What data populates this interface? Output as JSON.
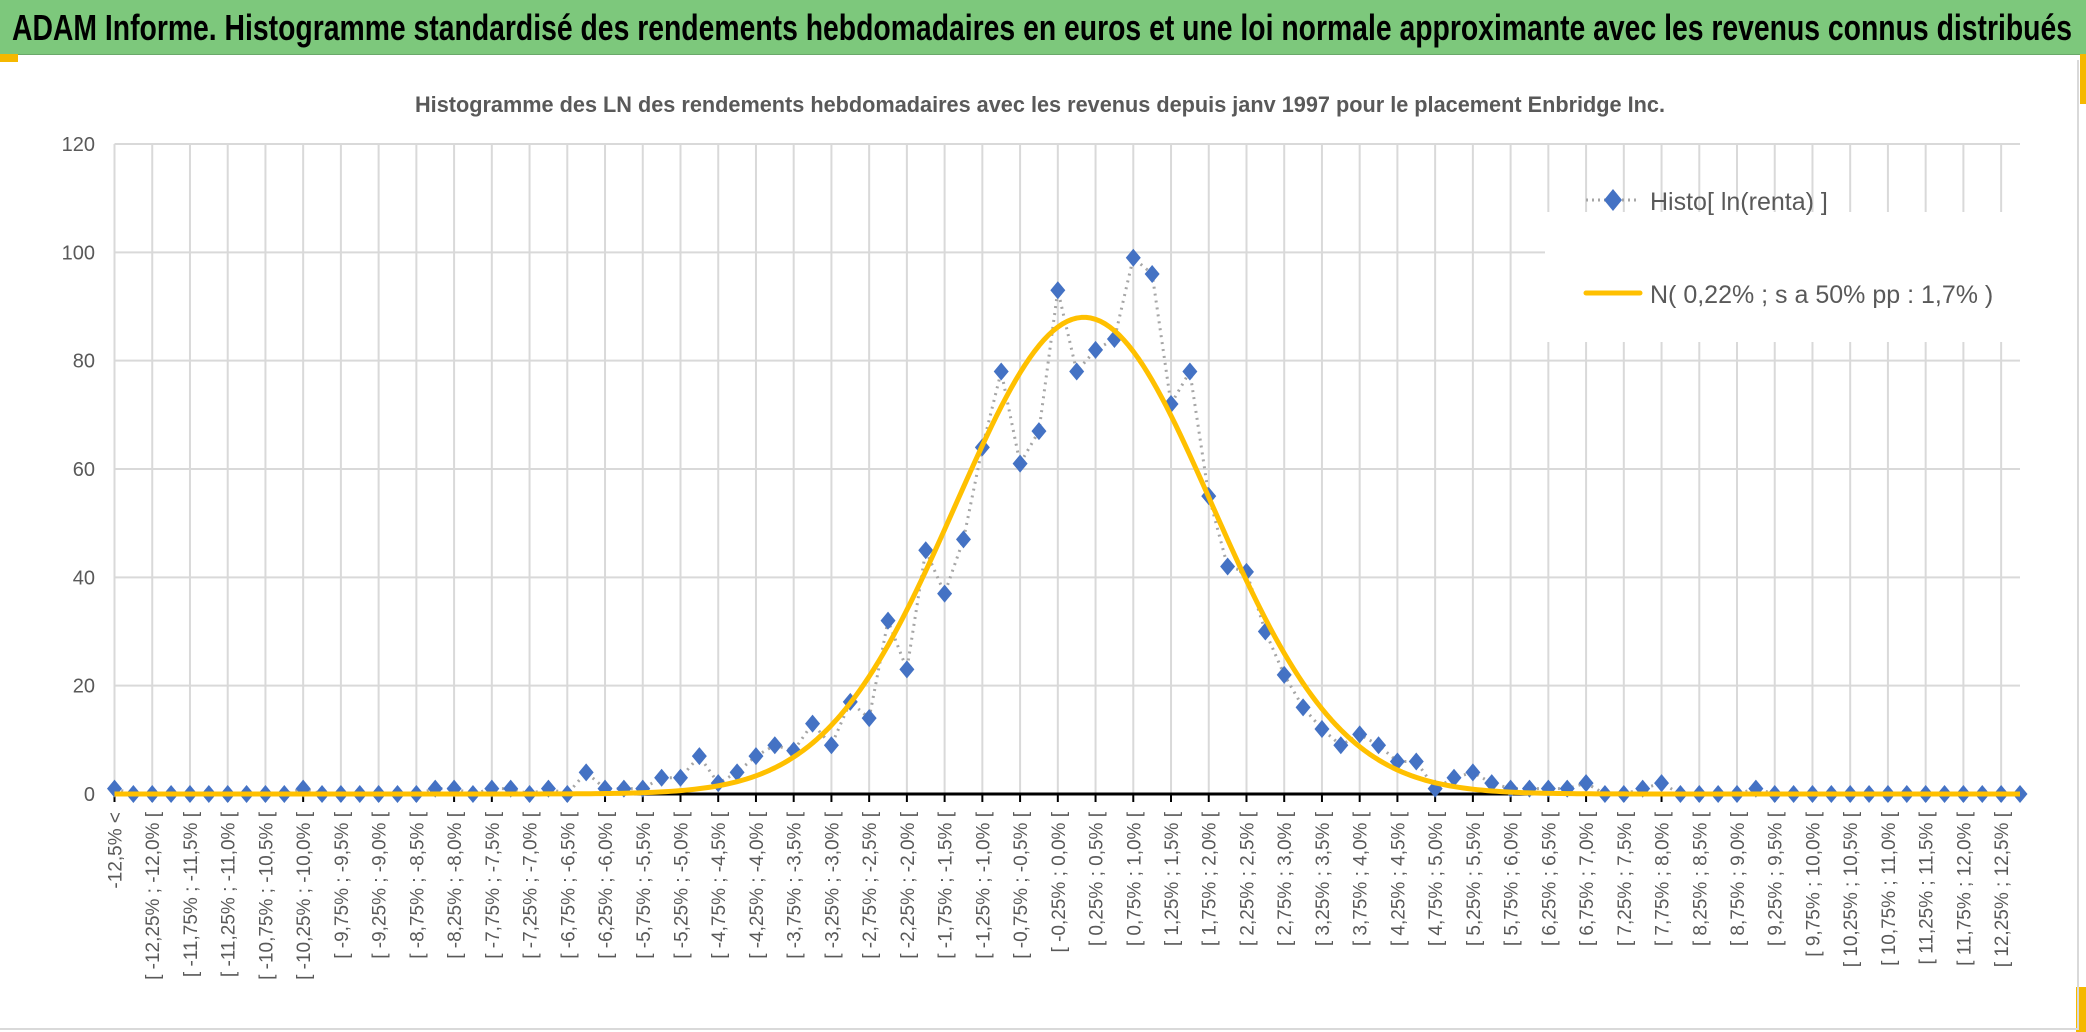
{
  "header": {
    "title": "ADAM Informe. Histogramme standardisé des rendements hebdomadaires en euros et une loi normale approximante avec les revenus connus distribués"
  },
  "colors": {
    "header_bg": "#7dc87c",
    "accent": "#f5b800",
    "histo": "#4472c4",
    "histo_line": "#a6a6a6",
    "normal": "#ffc000",
    "grid": "#d9d9d9",
    "text": "#595959"
  },
  "chart_data": {
    "type": "line",
    "title": "Histogramme des LN des rendements hebdomadaires avec les revenus depuis janv 1997 pour le placement Enbridge Inc.",
    "xlabel": "",
    "ylabel": "",
    "ylim": [
      0,
      120
    ],
    "yticks": [
      0,
      20,
      40,
      60,
      80,
      100,
      120
    ],
    "grid": true,
    "legend_position": "top-right",
    "tick_labels": [
      "-12,5% <",
      "[ -12,25% ; -12,0% [",
      "[ -11,75% ; -11,5% [",
      "[ -11,25% ; -11,0% [",
      "[ -10,75% ; -10,5% [",
      "[ -10,25% ; -10,0% [",
      "[ -9,75% ; -9,5% [",
      "[ -9,25% ; -9,0% [",
      "[ -8,75% ; -8,5% [",
      "[ -8,25% ; -8,0% [",
      "[ -7,75% ; -7,5% [",
      "[ -7,25% ; -7,0% [",
      "[ -6,75% ; -6,5% [",
      "[ -6,25% ; -6,0% [",
      "[ -5,75% ; -5,5% [",
      "[ -5,25% ; -5,0% [",
      "[ -4,75% ; -4,5% [",
      "[ -4,25% ; -4,0% [",
      "[ -3,75% ; -3,5% [",
      "[ -3,25% ; -3,0% [",
      "[ -2,75% ; -2,5% [",
      "[ -2,25% ; -2,0% [",
      "[ -1,75% ; -1,5% [",
      "[ -1,25% ; -1,0% [",
      "[ -0,75% ; -0,5% [",
      "[ -0,25% ; 0,0% [",
      "[ 0,25% ; 0,5% [",
      "[ 0,75% ; 1,0% [",
      "[ 1,25% ; 1,5% [",
      "[ 1,75% ; 2,0% [",
      "[ 2,25% ; 2,5% [",
      "[ 2,75% ; 3,0% [",
      "[ 3,25% ; 3,5% [",
      "[ 3,75% ; 4,0% [",
      "[ 4,25% ; 4,5% [",
      "[ 4,75% ; 5,0% [",
      "[ 5,25% ; 5,5% [",
      "[ 5,75% ; 6,0% [",
      "[ 6,25% ; 6,5% [",
      "[ 6,75% ; 7,0% [",
      "[ 7,25% ; 7,5% [",
      "[ 7,75% ; 8,0% [",
      "[ 8,25% ; 8,5% [",
      "[ 8,75% ; 9,0% [",
      "[ 9,25% ; 9,5% [",
      "[ 9,75% ; 10,0% [",
      "[ 10,25% ; 10,5% [",
      "[ 10,75% ; 11,0% [",
      "[ 11,25% ; 11,5% [",
      "[ 11,75% ; 12,0% [",
      "[ 12,25% ; 12,5% ["
    ],
    "series": [
      {
        "name": "Histo[ ln(renta) ]",
        "marker": "diamond",
        "values": [
          1,
          0,
          0,
          0,
          0,
          0,
          0,
          0,
          0,
          0,
          1,
          0,
          0,
          0,
          0,
          0,
          0,
          1,
          1,
          0,
          1,
          1,
          0,
          1,
          0,
          4,
          1,
          1,
          1,
          3,
          3,
          7,
          2,
          4,
          7,
          9,
          8,
          13,
          9,
          17,
          14,
          32,
          23,
          45,
          37,
          47,
          64,
          78,
          61,
          67,
          93,
          78,
          82,
          84,
          99,
          96,
          72,
          78,
          55,
          42,
          41,
          30,
          22,
          16,
          12,
          9,
          11,
          9,
          6,
          6,
          1,
          3,
          4,
          2,
          1,
          1,
          1,
          1,
          2,
          0,
          0,
          1,
          2,
          0,
          0,
          0,
          0,
          1,
          0,
          0,
          0,
          0,
          0,
          0,
          0,
          0,
          0,
          0,
          0,
          0,
          0,
          0
        ]
      },
      {
        "name": "N( 0,22% ; s a 50% pp : 1,7% )",
        "type": "normal-curve",
        "mean_pct": 0.22,
        "sd_pct": 1.7,
        "peak": 88
      }
    ]
  }
}
